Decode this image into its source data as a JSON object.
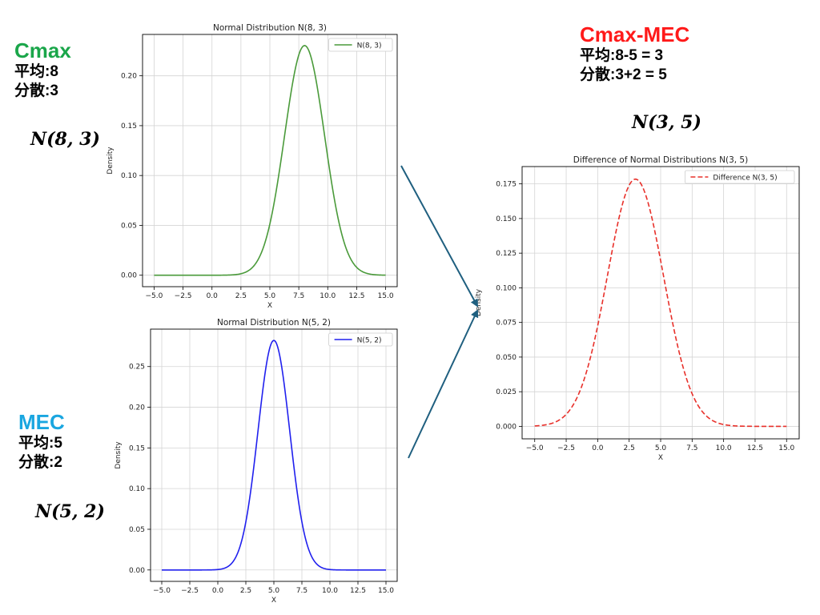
{
  "annotations": {
    "cmax": {
      "title": "Cmax",
      "title_color": "#1aa64a",
      "mean_line": "平均:8",
      "var_line": "分散:3",
      "formula": "N(8, 3)"
    },
    "mec": {
      "title": "MEC",
      "title_color": "#1aa6e0",
      "mean_line": "平均:5",
      "var_line": "分散:2",
      "formula": "N(5, 2)"
    },
    "diff": {
      "title": "Cmax-MEC",
      "title_color": "#ff1a1a",
      "mean_line": "平均:8-5 = 3",
      "var_line": "分散:3+2 = 5",
      "formula": "N(3, 5)"
    }
  },
  "arrow_color": "#1f5f7f",
  "chart_data": [
    {
      "type": "line",
      "title": "Normal Distribution N(8, 3)",
      "xlabel": "X",
      "ylabel": "Density",
      "xlim": [
        -6,
        16
      ],
      "ylim": [
        -0.0115,
        0.2415
      ],
      "x_ticks": [
        -5.0,
        -2.5,
        0.0,
        2.5,
        5.0,
        7.5,
        10.0,
        12.5,
        15.0
      ],
      "x_tick_labels": [
        "−5.0",
        "−2.5",
        "0.0",
        "2.5",
        "5.0",
        "7.5",
        "10.0",
        "12.5",
        "15.0"
      ],
      "y_ticks": [
        0.0,
        0.05,
        0.1,
        0.15,
        0.2
      ],
      "y_tick_labels": [
        "0.00",
        "0.05",
        "0.10",
        "0.15",
        "0.20"
      ],
      "grid": true,
      "legend_position": "top-right",
      "series": [
        {
          "name": "N(8, 3)",
          "color": "#4a9a3a",
          "dash": "solid",
          "distribution": "normal",
          "mean": 8,
          "variance": 3,
          "x_range": [
            -5,
            15
          ]
        }
      ]
    },
    {
      "type": "line",
      "title": "Normal Distribution N(5, 2)",
      "xlabel": "X",
      "ylabel": "Density",
      "xlim": [
        -6,
        16
      ],
      "ylim": [
        -0.014,
        0.296
      ],
      "x_ticks": [
        -5.0,
        -2.5,
        0.0,
        2.5,
        5.0,
        7.5,
        10.0,
        12.5,
        15.0
      ],
      "x_tick_labels": [
        "−5.0",
        "−2.5",
        "0.0",
        "2.5",
        "5.0",
        "7.5",
        "10.0",
        "12.5",
        "15.0"
      ],
      "y_ticks": [
        0.0,
        0.05,
        0.1,
        0.15,
        0.2,
        0.25
      ],
      "y_tick_labels": [
        "0.00",
        "0.05",
        "0.10",
        "0.15",
        "0.20",
        "0.25"
      ],
      "grid": true,
      "legend_position": "top-right",
      "series": [
        {
          "name": "N(5, 2)",
          "color": "#2020ee",
          "dash": "solid",
          "distribution": "normal",
          "mean": 5,
          "variance": 2,
          "x_range": [
            -5,
            15
          ]
        }
      ]
    },
    {
      "type": "line",
      "title": "Difference of Normal Distributions N(3, 5)",
      "xlabel": "X",
      "ylabel": "Density",
      "xlim": [
        -6,
        16
      ],
      "ylim": [
        -0.009,
        0.1875
      ],
      "x_ticks": [
        -5.0,
        -2.5,
        0.0,
        2.5,
        5.0,
        7.5,
        10.0,
        12.5,
        15.0
      ],
      "x_tick_labels": [
        "−5.0",
        "−2.5",
        "0.0",
        "2.5",
        "5.0",
        "7.5",
        "10.0",
        "12.5",
        "15.0"
      ],
      "y_ticks": [
        0.0,
        0.025,
        0.05,
        0.075,
        0.1,
        0.125,
        0.15,
        0.175
      ],
      "y_tick_labels": [
        "0.000",
        "0.025",
        "0.050",
        "0.075",
        "0.100",
        "0.125",
        "0.150",
        "0.175"
      ],
      "grid": true,
      "legend_position": "top-right",
      "series": [
        {
          "name": "Difference N(3, 5)",
          "color": "#e8302a",
          "dash": "dashed",
          "distribution": "normal",
          "mean": 3,
          "variance": 5,
          "x_range": [
            -5,
            15
          ]
        }
      ]
    }
  ]
}
